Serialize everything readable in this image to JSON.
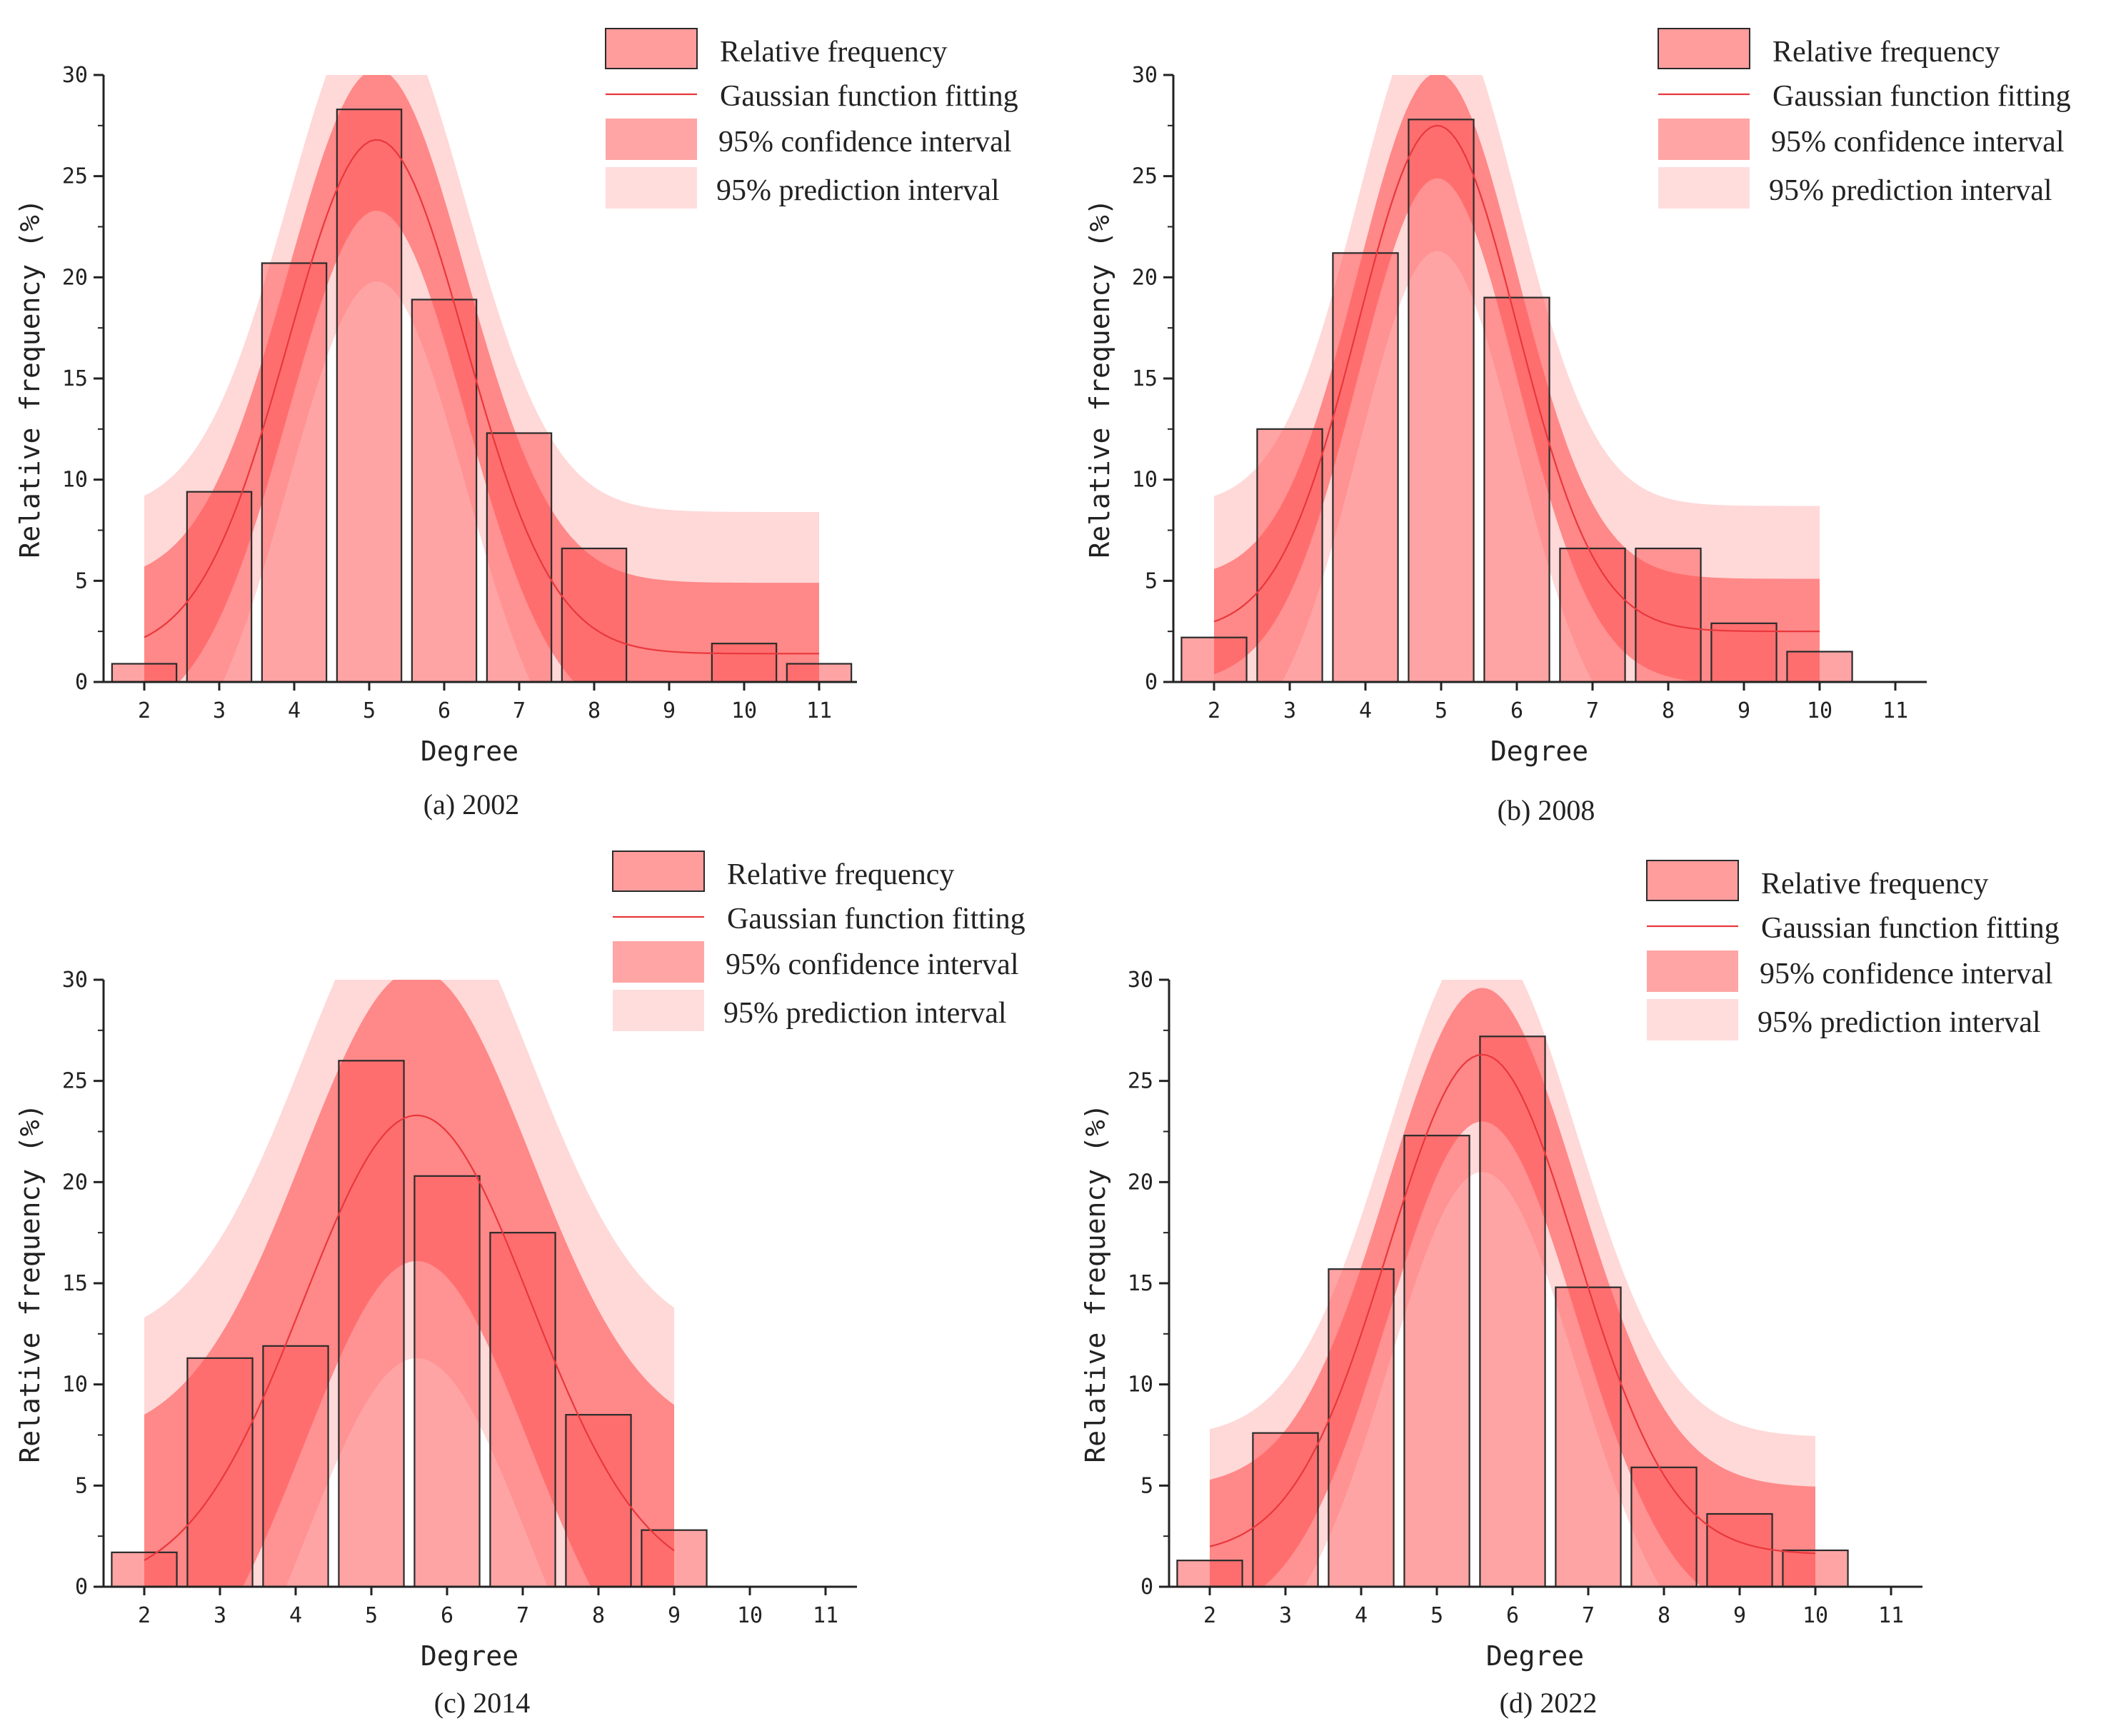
{
  "colors": {
    "bar_fill": "#ff5a5a",
    "bar_stroke": "#2b2b2b",
    "fit_line": "#e8383d",
    "confidence_band": "#ff7f7f",
    "prediction_band": "#ffd4d4",
    "axis": "#222222"
  },
  "legend": {
    "relative_frequency": "Relative frequency",
    "gaussian_fit": "Gaussian function fitting",
    "confidence": "95% confidence interval",
    "prediction": "95% prediction interval"
  },
  "chart_data": [
    {
      "type": "bar",
      "caption": "(a) 2002",
      "xlabel": "Degree",
      "ylabel": "Relative frequency (%)",
      "ylim": [
        0,
        30
      ],
      "yticks": [
        "0",
        "5",
        "10",
        "15",
        "20",
        "25",
        "30"
      ],
      "categories": [
        "2",
        "3",
        "4",
        "5",
        "6",
        "7",
        "8",
        "9",
        "10",
        "11"
      ],
      "values": [
        0.9,
        9.4,
        20.7,
        28.3,
        18.9,
        12.3,
        6.6,
        0,
        1.9,
        0.9
      ],
      "fit": {
        "a": 1.4,
        "A": 25.4,
        "mu": 5.1,
        "sigma": 1.18,
        "range": [
          2,
          11
        ]
      },
      "ci_half": 3.5,
      "pi_half": 7.0
    },
    {
      "type": "bar",
      "caption": "(b) 2008",
      "xlabel": "Degree",
      "ylabel": "Relative frequency (%)",
      "ylim": [
        0,
        30
      ],
      "yticks": [
        "0",
        "5",
        "10",
        "15",
        "20",
        "25",
        "30"
      ],
      "categories": [
        "2",
        "3",
        "4",
        "5",
        "6",
        "7",
        "8",
        "9",
        "10",
        "11"
      ],
      "values": [
        2.2,
        12.5,
        21.2,
        27.8,
        19.0,
        6.6,
        6.6,
        2.9,
        1.5,
        0
      ],
      "fit": {
        "a": 2.5,
        "A": 25.0,
        "mu": 4.95,
        "sigma": 1.05,
        "range": [
          2,
          10
        ]
      },
      "ci_half": 2.6,
      "pi_half": 6.2
    },
    {
      "type": "bar",
      "caption": "(c) 2014",
      "xlabel": "Degree",
      "ylabel": "Relative frequency (%)",
      "ylim": [
        0,
        30
      ],
      "yticks": [
        "0",
        "5",
        "10",
        "15",
        "20",
        "25",
        "30"
      ],
      "categories": [
        "2",
        "3",
        "4",
        "5",
        "6",
        "7",
        "8",
        "9",
        "10",
        "11"
      ],
      "values": [
        1.7,
        11.3,
        11.9,
        26.0,
        20.3,
        17.5,
        8.5,
        2.8,
        0,
        0
      ],
      "fit": {
        "a": 0,
        "A": 23.3,
        "mu": 5.6,
        "sigma": 1.5,
        "range": [
          2,
          9
        ]
      },
      "ci_half": 7.2,
      "pi_half": 12.0
    },
    {
      "type": "bar",
      "caption": "(d) 2022",
      "xlabel": "Degree",
      "ylabel": "Relative frequency (%)",
      "ylim": [
        0,
        30
      ],
      "yticks": [
        "0",
        "5",
        "10",
        "15",
        "20",
        "25",
        "30"
      ],
      "categories": [
        "2",
        "3",
        "4",
        "5",
        "6",
        "7",
        "8",
        "9",
        "10",
        "11"
      ],
      "values": [
        1.3,
        7.6,
        15.7,
        22.3,
        27.2,
        14.8,
        5.9,
        3.6,
        1.8,
        0
      ],
      "fit": {
        "a": 1.6,
        "A": 24.7,
        "mu": 5.6,
        "sigma": 1.25,
        "range": [
          2,
          10
        ]
      },
      "ci_half": 3.3,
      "pi_half": 5.8
    }
  ]
}
